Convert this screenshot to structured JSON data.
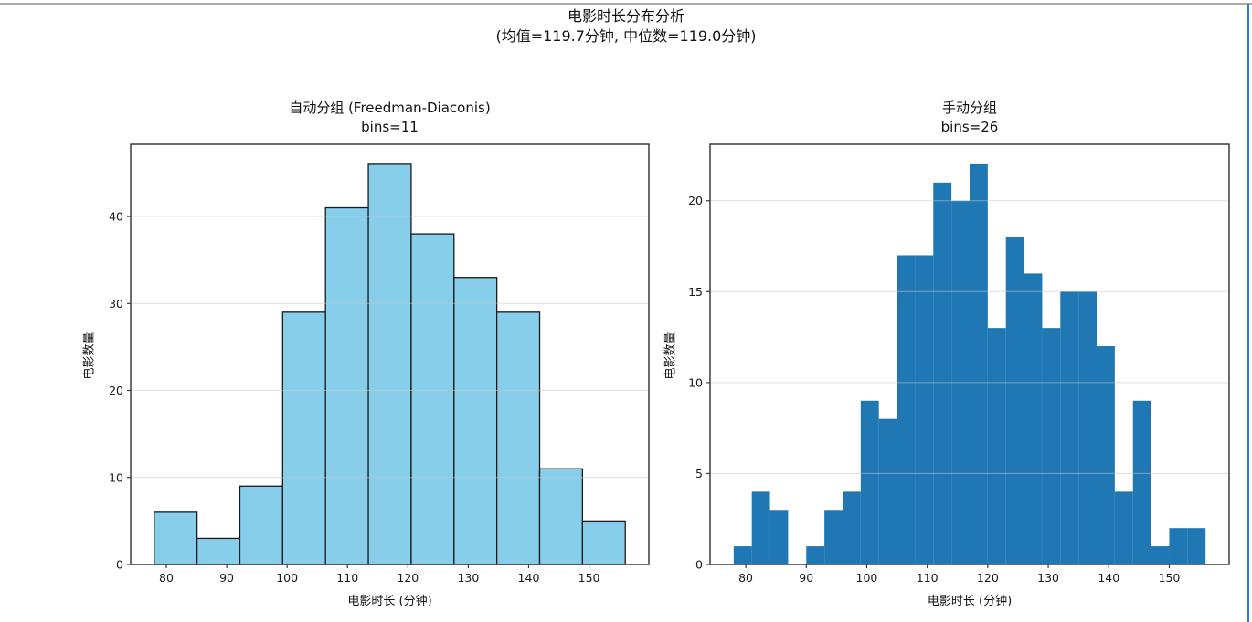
{
  "page": {
    "background": "#ffffff",
    "top_border_color": "#ababab",
    "right_accent_color": "#1e80e8"
  },
  "suptitle": {
    "line1": "电影时长分布分析",
    "line2": "(均值=119.7分钟, 中位数=119.0分钟)"
  },
  "chart_data": [
    {
      "type": "bar",
      "variant": "histogram",
      "title": "自动分组 (Freedman-Diaconis)",
      "subtitle": "bins=11",
      "xlabel": "电影时长 (分钟)",
      "ylabel": "电影数量",
      "bin_start": 78,
      "bin_width": 7.090909,
      "counts": [
        6,
        3,
        9,
        29,
        41,
        46,
        38,
        33,
        29,
        11,
        5
      ],
      "xticks": [
        80,
        90,
        100,
        110,
        120,
        130,
        140,
        150
      ],
      "yticks": [
        0,
        10,
        20,
        30,
        40
      ],
      "xlim": [
        74.1,
        159.9
      ],
      "ylim": [
        0,
        48.3
      ],
      "grid": "y-only, drawn above bars, light gray",
      "legend": "none",
      "bar_color": "#87CEEB",
      "bar_edge_color": "#1a1a1a"
    },
    {
      "type": "bar",
      "variant": "histogram",
      "title": "手动分组",
      "subtitle": "bins=26",
      "xlabel": "电影时长 (分钟)",
      "ylabel": "电影数量",
      "bin_start": 78,
      "bin_width": 3,
      "counts": [
        1,
        4,
        3,
        0,
        1,
        3,
        4,
        9,
        8,
        17,
        17,
        21,
        20,
        22,
        13,
        18,
        16,
        13,
        15,
        15,
        12,
        4,
        9,
        1,
        2,
        2
      ],
      "xticks": [
        80,
        90,
        100,
        110,
        120,
        130,
        140,
        150
      ],
      "yticks": [
        0,
        5,
        10,
        15,
        20
      ],
      "xlim": [
        74.1,
        159.9
      ],
      "ylim": [
        0,
        23.1
      ],
      "grid": "y-only, drawn above bars, light gray",
      "legend": "none",
      "bar_color": "#1f77b4",
      "bar_edge_color": null
    }
  ],
  "axis_style": {
    "spine_color": "#3b3b3b",
    "grid_color": "#c8c8c8",
    "tick_label_color": "#1a1a1a"
  }
}
